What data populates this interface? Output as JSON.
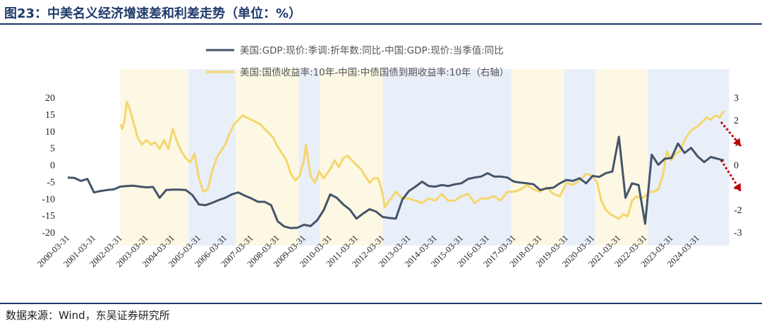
{
  "header": {
    "title": "图23：中美名义经济增速差和利差走势（单位：%）"
  },
  "footer": {
    "source": "数据来源：Wind，东吴证券研究所"
  },
  "colors": {
    "gdp_line": "#44546a",
    "spread_line": "#f5d66e",
    "band_yellow": "#fdf8e3",
    "band_blue": "#e9eff8",
    "arrow": "#c00000",
    "rule": "#1f3a6a"
  },
  "chart_data": {
    "type": "line",
    "title": "",
    "legend_position": "top-center",
    "grid": false,
    "y_left": {
      "lim": [
        -20,
        20
      ],
      "ticks": [
        20,
        15,
        10,
        5,
        0,
        -5,
        -10,
        -15,
        -20
      ]
    },
    "y_right": {
      "lim": [
        -3,
        3
      ],
      "ticks": [
        3,
        2,
        1,
        0,
        -1,
        -2,
        -3
      ]
    },
    "x_ticks": [
      "2000-03-31",
      "2001-03-31",
      "2002-03-31",
      "2003-03-31",
      "2004-03-31",
      "2005-03-31",
      "2006-03-31",
      "2007-03-31",
      "2008-03-31",
      "2009-03-31",
      "2010-03-31",
      "2011-03-31",
      "2012-03-31",
      "2013-03-31",
      "2014-03-31",
      "2015-03-31",
      "2016-03-31",
      "2017-03-31",
      "2018-03-31",
      "2019-03-31",
      "2020-03-31",
      "2021-03-31",
      "2022-03-31",
      "2023-03-31",
      "2024-03-31"
    ],
    "bands": [
      {
        "start": 2002.0,
        "end": 2004.6,
        "color": "yellow"
      },
      {
        "start": 2004.6,
        "end": 2006.4,
        "color": "blue"
      },
      {
        "start": 2006.4,
        "end": 2008.8,
        "color": "yellow"
      },
      {
        "start": 2008.8,
        "end": 2009.6,
        "color": "blue"
      },
      {
        "start": 2009.6,
        "end": 2012.0,
        "color": "yellow"
      },
      {
        "start": 2012.0,
        "end": 2016.9,
        "color": "blue"
      },
      {
        "start": 2016.9,
        "end": 2018.9,
        "color": "yellow"
      },
      {
        "start": 2018.9,
        "end": 2020.1,
        "color": "blue"
      },
      {
        "start": 2020.1,
        "end": 2022.1,
        "color": "yellow"
      },
      {
        "start": 2022.1,
        "end": 2025.2,
        "color": "blue"
      }
    ],
    "series": [
      {
        "name": "美国:GDP:现价:季调:折年数:同比-中国:GDP:现价:当季值:同比",
        "axis": "left",
        "points": [
          [
            2000.0,
            -3.8
          ],
          [
            2000.25,
            -3.9
          ],
          [
            2000.5,
            -4.8
          ],
          [
            2000.75,
            -4.2
          ],
          [
            2001.0,
            -8.2
          ],
          [
            2001.25,
            -7.8
          ],
          [
            2001.5,
            -7.5
          ],
          [
            2001.75,
            -7.3
          ],
          [
            2002.0,
            -6.5
          ],
          [
            2002.25,
            -6.3
          ],
          [
            2002.5,
            -6.2
          ],
          [
            2002.75,
            -6.5
          ],
          [
            2003.0,
            -6.7
          ],
          [
            2003.25,
            -6.6
          ],
          [
            2003.5,
            -9.8
          ],
          [
            2003.75,
            -7.5
          ],
          [
            2004.0,
            -7.4
          ],
          [
            2004.25,
            -7.4
          ],
          [
            2004.5,
            -7.5
          ],
          [
            2004.75,
            -9.0
          ],
          [
            2005.0,
            -11.8
          ],
          [
            2005.25,
            -12.0
          ],
          [
            2005.5,
            -11.3
          ],
          [
            2005.75,
            -10.5
          ],
          [
            2006.0,
            -9.8
          ],
          [
            2006.25,
            -8.8
          ],
          [
            2006.5,
            -8.2
          ],
          [
            2006.75,
            -9.2
          ],
          [
            2007.0,
            -10.0
          ],
          [
            2007.25,
            -11.0
          ],
          [
            2007.5,
            -11.0
          ],
          [
            2007.75,
            -12.0
          ],
          [
            2008.0,
            -16.8
          ],
          [
            2008.25,
            -18.3
          ],
          [
            2008.5,
            -18.8
          ],
          [
            2008.75,
            -18.7
          ],
          [
            2009.0,
            -17.8
          ],
          [
            2009.25,
            -18.2
          ],
          [
            2009.5,
            -16.5
          ],
          [
            2009.75,
            -13.5
          ],
          [
            2010.0,
            -8.8
          ],
          [
            2010.25,
            -9.8
          ],
          [
            2010.5,
            -11.8
          ],
          [
            2010.75,
            -13.3
          ],
          [
            2011.0,
            -16.0
          ],
          [
            2011.25,
            -14.5
          ],
          [
            2011.5,
            -13.2
          ],
          [
            2011.75,
            -13.9
          ],
          [
            2012.0,
            -15.5
          ],
          [
            2012.25,
            -15.8
          ],
          [
            2012.5,
            -16.0
          ],
          [
            2012.75,
            -10.3
          ],
          [
            2013.0,
            -7.8
          ],
          [
            2013.25,
            -6.5
          ],
          [
            2013.5,
            -5.0
          ],
          [
            2013.75,
            -6.3
          ],
          [
            2014.0,
            -6.5
          ],
          [
            2014.25,
            -6.0
          ],
          [
            2014.5,
            -6.3
          ],
          [
            2014.75,
            -5.8
          ],
          [
            2015.0,
            -5.5
          ],
          [
            2015.25,
            -4.2
          ],
          [
            2015.5,
            -3.8
          ],
          [
            2015.75,
            -3.5
          ],
          [
            2016.0,
            -2.5
          ],
          [
            2016.25,
            -3.5
          ],
          [
            2016.5,
            -3.5
          ],
          [
            2016.75,
            -3.8
          ],
          [
            2017.0,
            -5.0
          ],
          [
            2017.25,
            -5.3
          ],
          [
            2017.5,
            -5.5
          ],
          [
            2017.75,
            -5.8
          ],
          [
            2018.0,
            -7.5
          ],
          [
            2018.25,
            -7.0
          ],
          [
            2018.5,
            -6.8
          ],
          [
            2018.75,
            -5.5
          ],
          [
            2019.0,
            -4.5
          ],
          [
            2019.25,
            -4.8
          ],
          [
            2019.5,
            -4.0
          ],
          [
            2019.75,
            -5.5
          ],
          [
            2020.0,
            -3.3
          ],
          [
            2020.25,
            -3.6
          ],
          [
            2020.5,
            -2.5
          ],
          [
            2020.75,
            -2.0
          ],
          [
            2021.0,
            8.3
          ],
          [
            2021.25,
            -9.8
          ],
          [
            2021.5,
            -5.5
          ],
          [
            2021.75,
            -6.0
          ],
          [
            2022.0,
            -17.5
          ],
          [
            2022.25,
            3.0
          ],
          [
            2022.5,
            0.0
          ],
          [
            2022.75,
            1.8
          ],
          [
            2023.0,
            2.0
          ],
          [
            2023.25,
            6.3
          ],
          [
            2023.5,
            3.5
          ],
          [
            2023.75,
            5.0
          ],
          [
            2024.0,
            2.5
          ],
          [
            2024.25,
            0.8
          ],
          [
            2024.5,
            2.3
          ],
          [
            2024.75,
            1.8
          ],
          [
            2025.0,
            1.3
          ]
        ]
      },
      {
        "name": "美国:国债收益率:10年-中国:中债国债到期收益率:10年（右轴）",
        "axis": "right",
        "points": [
          [
            2002.0,
            1.8
          ],
          [
            2002.08,
            1.6
          ],
          [
            2002.17,
            2.0
          ],
          [
            2002.25,
            2.8
          ],
          [
            2002.33,
            2.6
          ],
          [
            2002.5,
            1.9
          ],
          [
            2002.67,
            1.2
          ],
          [
            2002.83,
            0.9
          ],
          [
            2003.0,
            1.1
          ],
          [
            2003.17,
            0.9
          ],
          [
            2003.33,
            1.0
          ],
          [
            2003.5,
            0.7
          ],
          [
            2003.67,
            1.1
          ],
          [
            2003.83,
            0.7
          ],
          [
            2004.0,
            1.6
          ],
          [
            2004.17,
            1.0
          ],
          [
            2004.33,
            0.6
          ],
          [
            2004.5,
            0.3
          ],
          [
            2004.67,
            0.1
          ],
          [
            2004.83,
            0.5
          ],
          [
            2005.0,
            -0.6
          ],
          [
            2005.17,
            -1.2
          ],
          [
            2005.33,
            -1.1
          ],
          [
            2005.5,
            -0.3
          ],
          [
            2005.67,
            0.3
          ],
          [
            2005.83,
            0.6
          ],
          [
            2006.0,
            0.9
          ],
          [
            2006.17,
            1.4
          ],
          [
            2006.33,
            1.8
          ],
          [
            2006.5,
            2.0
          ],
          [
            2006.67,
            2.2
          ],
          [
            2006.83,
            2.1
          ],
          [
            2007.0,
            2.0
          ],
          [
            2007.17,
            1.9
          ],
          [
            2007.33,
            1.8
          ],
          [
            2007.5,
            1.6
          ],
          [
            2007.67,
            1.4
          ],
          [
            2007.83,
            1.2
          ],
          [
            2008.0,
            0.8
          ],
          [
            2008.17,
            0.5
          ],
          [
            2008.33,
            0.2
          ],
          [
            2008.5,
            -0.4
          ],
          [
            2008.67,
            -0.7
          ],
          [
            2008.83,
            -0.5
          ],
          [
            2009.0,
            0.2
          ],
          [
            2009.08,
            0.9
          ],
          [
            2009.25,
            -0.5
          ],
          [
            2009.42,
            -0.8
          ],
          [
            2009.58,
            -0.3
          ],
          [
            2009.75,
            -0.6
          ],
          [
            2010.0,
            -0.2
          ],
          [
            2010.17,
            0.2
          ],
          [
            2010.33,
            -0.1
          ],
          [
            2010.5,
            0.3
          ],
          [
            2010.67,
            0.4
          ],
          [
            2010.83,
            0.2
          ],
          [
            2011.0,
            0.0
          ],
          [
            2011.17,
            -0.2
          ],
          [
            2011.33,
            -0.5
          ],
          [
            2011.5,
            -0.8
          ],
          [
            2011.67,
            -0.6
          ],
          [
            2011.83,
            -0.6
          ],
          [
            2012.0,
            -1.3
          ],
          [
            2012.08,
            -1.9
          ],
          [
            2012.25,
            -1.6
          ],
          [
            2012.5,
            -1.2
          ],
          [
            2012.75,
            -1.5
          ],
          [
            2013.0,
            -1.5
          ],
          [
            2013.25,
            -1.6
          ],
          [
            2013.5,
            -1.7
          ],
          [
            2013.75,
            -1.5
          ],
          [
            2014.0,
            -1.6
          ],
          [
            2014.25,
            -1.3
          ],
          [
            2014.5,
            -1.6
          ],
          [
            2014.75,
            -1.6
          ],
          [
            2015.0,
            -1.4
          ],
          [
            2015.25,
            -1.3
          ],
          [
            2015.5,
            -1.7
          ],
          [
            2015.75,
            -1.5
          ],
          [
            2016.0,
            -1.5
          ],
          [
            2016.25,
            -1.4
          ],
          [
            2016.5,
            -1.6
          ],
          [
            2016.75,
            -1.2
          ],
          [
            2017.0,
            -1.2
          ],
          [
            2017.25,
            -1.1
          ],
          [
            2017.5,
            -0.9
          ],
          [
            2017.75,
            -1.1
          ],
          [
            2018.0,
            -1.2
          ],
          [
            2018.25,
            -1.0
          ],
          [
            2018.5,
            -1.3
          ],
          [
            2018.75,
            -1.4
          ],
          [
            2019.0,
            -0.8
          ],
          [
            2019.25,
            -0.9
          ],
          [
            2019.5,
            -0.7
          ],
          [
            2019.75,
            -0.4
          ],
          [
            2020.0,
            -0.5
          ],
          [
            2020.17,
            -0.8
          ],
          [
            2020.33,
            -1.6
          ],
          [
            2020.5,
            -2.0
          ],
          [
            2020.67,
            -2.2
          ],
          [
            2020.83,
            -2.3
          ],
          [
            2021.0,
            -2.4
          ],
          [
            2021.17,
            -2.2
          ],
          [
            2021.33,
            -2.3
          ],
          [
            2021.5,
            -1.6
          ],
          [
            2021.67,
            -1.4
          ],
          [
            2021.83,
            -1.5
          ],
          [
            2022.0,
            -1.4
          ],
          [
            2022.17,
            -1.2
          ],
          [
            2022.33,
            -1.2
          ],
          [
            2022.5,
            -1.1
          ],
          [
            2022.67,
            -0.5
          ],
          [
            2022.83,
            0.6
          ],
          [
            2023.0,
            0.2
          ],
          [
            2023.17,
            0.5
          ],
          [
            2023.33,
            0.6
          ],
          [
            2023.5,
            1.1
          ],
          [
            2023.67,
            1.4
          ],
          [
            2023.83,
            1.6
          ],
          [
            2024.0,
            1.7
          ],
          [
            2024.17,
            1.9
          ],
          [
            2024.33,
            2.1
          ],
          [
            2024.5,
            2.0
          ],
          [
            2024.67,
            2.2
          ],
          [
            2024.83,
            2.1
          ],
          [
            2025.0,
            2.4
          ]
        ]
      }
    ]
  }
}
